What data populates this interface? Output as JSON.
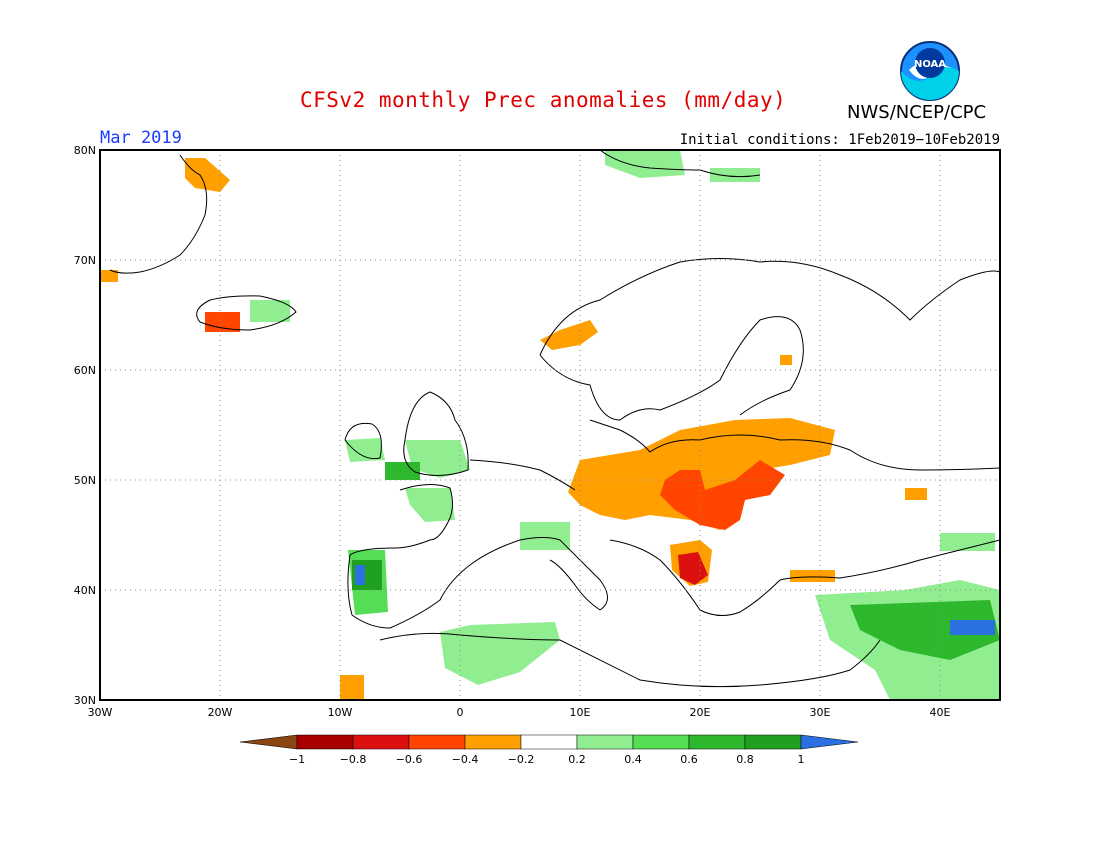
{
  "header": {
    "title": "CFSv2 monthly Prec anomalies (mm/day)",
    "agency": "NWS/NCEP/CPC",
    "logo_text": "NOAA",
    "month": "Mar 2019",
    "initial_conditions": "Initial conditions: 1Feb2019−10Feb2019"
  },
  "map": {
    "lon_range": [
      -30,
      45
    ],
    "lat_range": [
      30,
      80
    ],
    "lat_ticks": [
      "30N",
      "40N",
      "50N",
      "60N",
      "70N",
      "80N"
    ],
    "lon_ticks": [
      "30W",
      "20W",
      "10W",
      "0",
      "10E",
      "20E",
      "30E",
      "40E"
    ],
    "gridlines": "dotted"
  },
  "colorbar": {
    "labels": [
      "−1",
      "−0.8",
      "−0.6",
      "−0.4",
      "−0.2",
      "0.2",
      "0.4",
      "0.6",
      "0.8",
      "1"
    ],
    "colors": [
      "#8b4513",
      "#a80000",
      "#dd1010",
      "#ff4500",
      "#ff9f00",
      "#ffffff",
      "#90ee90",
      "#55dd55",
      "#2eb82e",
      "#1fa01f",
      "#2a70e0"
    ]
  },
  "anomalies": [
    {
      "region": "Central/Eastern Europe",
      "lon": [
        10,
        32
      ],
      "lat": [
        43,
        55
      ],
      "level": "-0.4"
    },
    {
      "region": "Hungary/Romania",
      "lon": [
        16,
        28
      ],
      "lat": [
        45,
        51
      ],
      "level": "-0.6"
    },
    {
      "region": "Balkans",
      "lon": [
        17,
        21
      ],
      "lat": [
        40,
        43
      ],
      "level": "-0.6"
    },
    {
      "region": "SW Norway coast",
      "lon": [
        5,
        12
      ],
      "lat": [
        61,
        64
      ],
      "level": "-0.4"
    },
    {
      "region": "Iceland west",
      "lon": [
        -21,
        -18
      ],
      "lat": [
        64,
        65
      ],
      "level": "-0.6"
    },
    {
      "region": "Svalbard/Greenland coast",
      "lon": [
        -22,
        -19
      ],
      "lat": [
        76,
        79
      ],
      "level": "-0.4"
    },
    {
      "region": "British Isles",
      "lon": [
        -10,
        1
      ],
      "lat": [
        50,
        56
      ],
      "level": "0.4"
    },
    {
      "region": "Portugal/NW Spain",
      "lon": [
        -9,
        -6
      ],
      "lat": [
        37,
        43
      ],
      "level": "0.6"
    },
    {
      "region": "North Africa",
      "lon": [
        -2,
        8
      ],
      "lat": [
        31,
        36
      ],
      "level": "0.4"
    },
    {
      "region": "Turkey/Middle East",
      "lon": [
        29,
        45
      ],
      "lat": [
        31,
        39
      ],
      "level": "0.4"
    },
    {
      "region": "Iraq/Iran border",
      "lon": [
        40,
        45
      ],
      "lat": [
        35,
        37
      ],
      "level": "1"
    }
  ]
}
